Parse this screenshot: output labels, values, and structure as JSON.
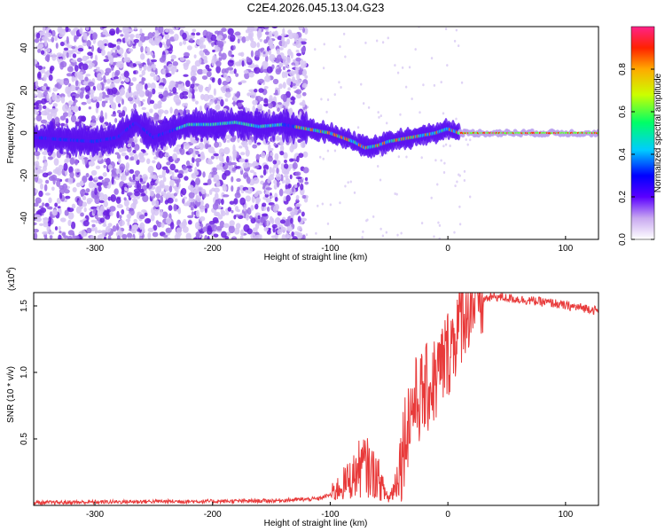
{
  "chart_data": [
    {
      "type": "heatmap",
      "title": "C2E4.2026.045.13.04.G23",
      "xlabel": "Height of straight line (km)",
      "ylabel": "Frequency (Hz)",
      "xlim": [
        -352,
        128
      ],
      "ylim": [
        -50,
        50
      ],
      "xticks": [
        -300,
        -200,
        -100,
        0,
        100
      ],
      "yticks": [
        -40,
        -20,
        0,
        20,
        40
      ],
      "colorbar": {
        "label": "Normalized spectral amplitude",
        "range": [
          0,
          1
        ],
        "ticks": [
          0.0,
          0.2,
          0.4,
          0.6,
          0.8
        ]
      },
      "ridge": {
        "description_points_x": [
          -352,
          -330,
          -300,
          -280,
          -265,
          -250,
          -220,
          -200,
          -180,
          -160,
          -140,
          -120,
          -100,
          -90,
          -80,
          -70,
          -60,
          -50,
          -40,
          -30,
          -20,
          -10,
          0,
          10,
          128
        ],
        "description_points_y": [
          -2,
          -3,
          -4,
          -2,
          5,
          -2,
          4,
          4,
          5,
          3,
          4,
          2,
          0,
          -2,
          -4,
          -7,
          -6,
          -4,
          -3,
          -2,
          -1,
          0,
          2,
          0,
          0
        ]
      }
    },
    {
      "type": "line",
      "title": "",
      "xlabel": "Height of straight line (km)",
      "ylabel": "SNR (10 * v/v)",
      "scale_label": "(x10",
      "scale_exp": "4",
      "scale_close": ")",
      "xlim": [
        -352,
        128
      ],
      "ylim": [
        0,
        16000
      ],
      "xticks": [
        -300,
        -200,
        -100,
        0,
        100
      ],
      "yticks": [
        5000,
        10000,
        15000
      ],
      "ytick_labels": [
        "0.5",
        "1.0",
        "1.5"
      ],
      "series": [
        {
          "name": "SNR",
          "color": "#e83a3a",
          "x": [
            -352,
            -300,
            -250,
            -200,
            -150,
            -110,
            -100,
            -90,
            -80,
            -75,
            -70,
            -65,
            -60,
            -55,
            -50,
            -45,
            -40,
            -35,
            -30,
            -25,
            -20,
            -15,
            -10,
            -5,
            0,
            5,
            10,
            15,
            20,
            25,
            30,
            40,
            50,
            60,
            70,
            80,
            90,
            100,
            110,
            120,
            128
          ],
          "y": [
            200,
            250,
            300,
            300,
            350,
            500,
            800,
            1500,
            2200,
            2800,
            3000,
            2500,
            2200,
            1200,
            500,
            1500,
            3500,
            6000,
            7500,
            8000,
            8500,
            9000,
            9500,
            10500,
            11500,
            12500,
            13800,
            14800,
            15200,
            15400,
            15500,
            15700,
            15600,
            15500,
            15400,
            15300,
            15200,
            15000,
            14900,
            14800,
            14600
          ]
        }
      ]
    }
  ]
}
